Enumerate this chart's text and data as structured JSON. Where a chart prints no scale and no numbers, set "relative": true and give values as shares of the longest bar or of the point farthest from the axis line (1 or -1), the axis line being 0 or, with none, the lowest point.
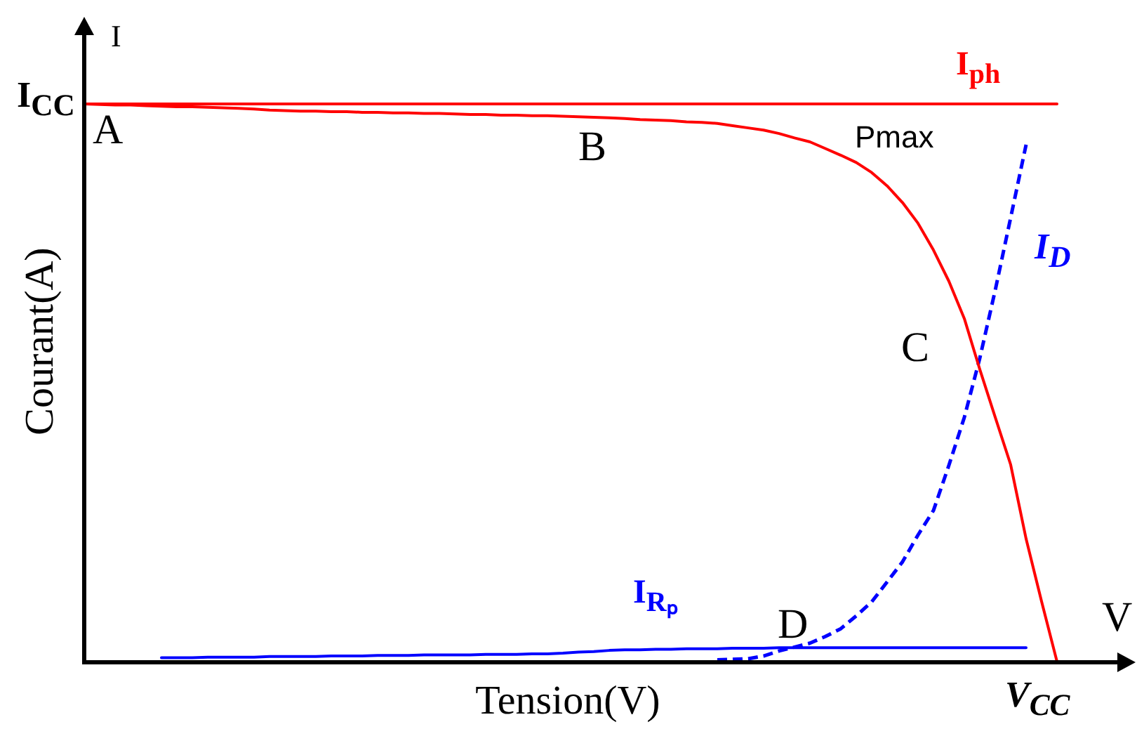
{
  "chart_data": {
    "type": "line",
    "relative": true,
    "xlabel": "Tension(V)",
    "ylabel": "Courant(A)",
    "categories": [
      null,
      null,
      null,
      null,
      null,
      null,
      null,
      null,
      null,
      null,
      null,
      null,
      null,
      null,
      null,
      null,
      null,
      null,
      null,
      null,
      null,
      null,
      null,
      null,
      null,
      null,
      null,
      null,
      null,
      null,
      null,
      null,
      null,
      null,
      null,
      null,
      null,
      null,
      null,
      null,
      null,
      null,
      null,
      null,
      null,
      null,
      null,
      null,
      null,
      null,
      null,
      null,
      null,
      null,
      null,
      null,
      null,
      null,
      null,
      null,
      null,
      null,
      null,
      null
    ],
    "series": [
      {
        "color": "#ff0000",
        "values": [
          1,
          0.999,
          0.998,
          0.998,
          0.997,
          0.996,
          0.995,
          0.995,
          0.994,
          0.993,
          0.992,
          0.991,
          0.989,
          0.988,
          0.987,
          0.987,
          0.986,
          0.986,
          0.985,
          0.985,
          0.984,
          0.984,
          0.983,
          0.983,
          0.982,
          0.981,
          0.981,
          0.98,
          0.98,
          0.979,
          0.979,
          0.978,
          0.977,
          0.976,
          0.975,
          0.974,
          0.972,
          0.971,
          0.97,
          0.968,
          0.967,
          0.965,
          0.961,
          0.957,
          0.953,
          0.947,
          0.939,
          0.932,
          0.92,
          0.908,
          0.895,
          0.877,
          0.853,
          0.823,
          0.786,
          0.738,
          0.682,
          0.615,
          0.524,
          0.438,
          0.353,
          0.22,
          0.108,
          0
        ]
      },
      {
        "name": "I$_{ph}$",
        "color": "#ff0000",
        "values": [
          1,
          1,
          1,
          1,
          1,
          1,
          1,
          1,
          1,
          1,
          1,
          1,
          1,
          1,
          1,
          1,
          1,
          1,
          1,
          1,
          1,
          1,
          1,
          1,
          1,
          1,
          1,
          1,
          1,
          1,
          1,
          1,
          1,
          1,
          1,
          1,
          1,
          1,
          1,
          1,
          1,
          1,
          1,
          1,
          1,
          1,
          1,
          1,
          1,
          1,
          1,
          1,
          1,
          1,
          1,
          1,
          1,
          1,
          1,
          1,
          1,
          1,
          1,
          1
        ]
      },
      {
        "name": "I$_{D}$",
        "color": "#0000ff",
        "line_style": "dashed",
        "values": [
          null,
          null,
          null,
          null,
          null,
          null,
          null,
          null,
          null,
          null,
          null,
          null,
          null,
          null,
          null,
          null,
          null,
          null,
          null,
          null,
          null,
          null,
          null,
          null,
          null,
          null,
          null,
          null,
          null,
          null,
          null,
          null,
          null,
          null,
          null,
          null,
          null,
          null,
          null,
          null,
          null,
          0.003,
          0.004,
          0.005,
          0.01,
          0.019,
          0.026,
          0.033,
          0.045,
          0.059,
          0.082,
          0.107,
          0.143,
          0.179,
          0.227,
          0.271,
          0.352,
          0.438,
          0.544,
          0.666,
          0.796,
          0.927,
          null,
          null
        ]
      },
      {
        "name": "I$_{Rₚ}$",
        "color": "#0000ff",
        "values": [
          null,
          null,
          null,
          null,
          null,
          0.007,
          0.007,
          0.007,
          0.008,
          0.008,
          0.008,
          0.008,
          0.009,
          0.009,
          0.009,
          0.009,
          0.01,
          0.01,
          0.01,
          0.011,
          0.011,
          0.011,
          0.012,
          0.012,
          0.012,
          0.012,
          0.013,
          0.013,
          0.013,
          0.014,
          0.014,
          0.015,
          0.017,
          0.018,
          0.02,
          0.021,
          0.021,
          0.022,
          0.022,
          0.023,
          0.023,
          0.023,
          0.024,
          0.024,
          0.024,
          0.025,
          0.025,
          0.025,
          0.025,
          0.025,
          0.025,
          0.025,
          0.025,
          0.025,
          0.025,
          0.025,
          0.025,
          0.025,
          0.025,
          0.025,
          0.025,
          0.025,
          null,
          null
        ]
      }
    ],
    "annotations": [
      "I",
      "I$_{CC}$",
      "A",
      "B",
      "Pmax",
      "C",
      "D",
      "V",
      "V$_{CC}$"
    ]
  }
}
